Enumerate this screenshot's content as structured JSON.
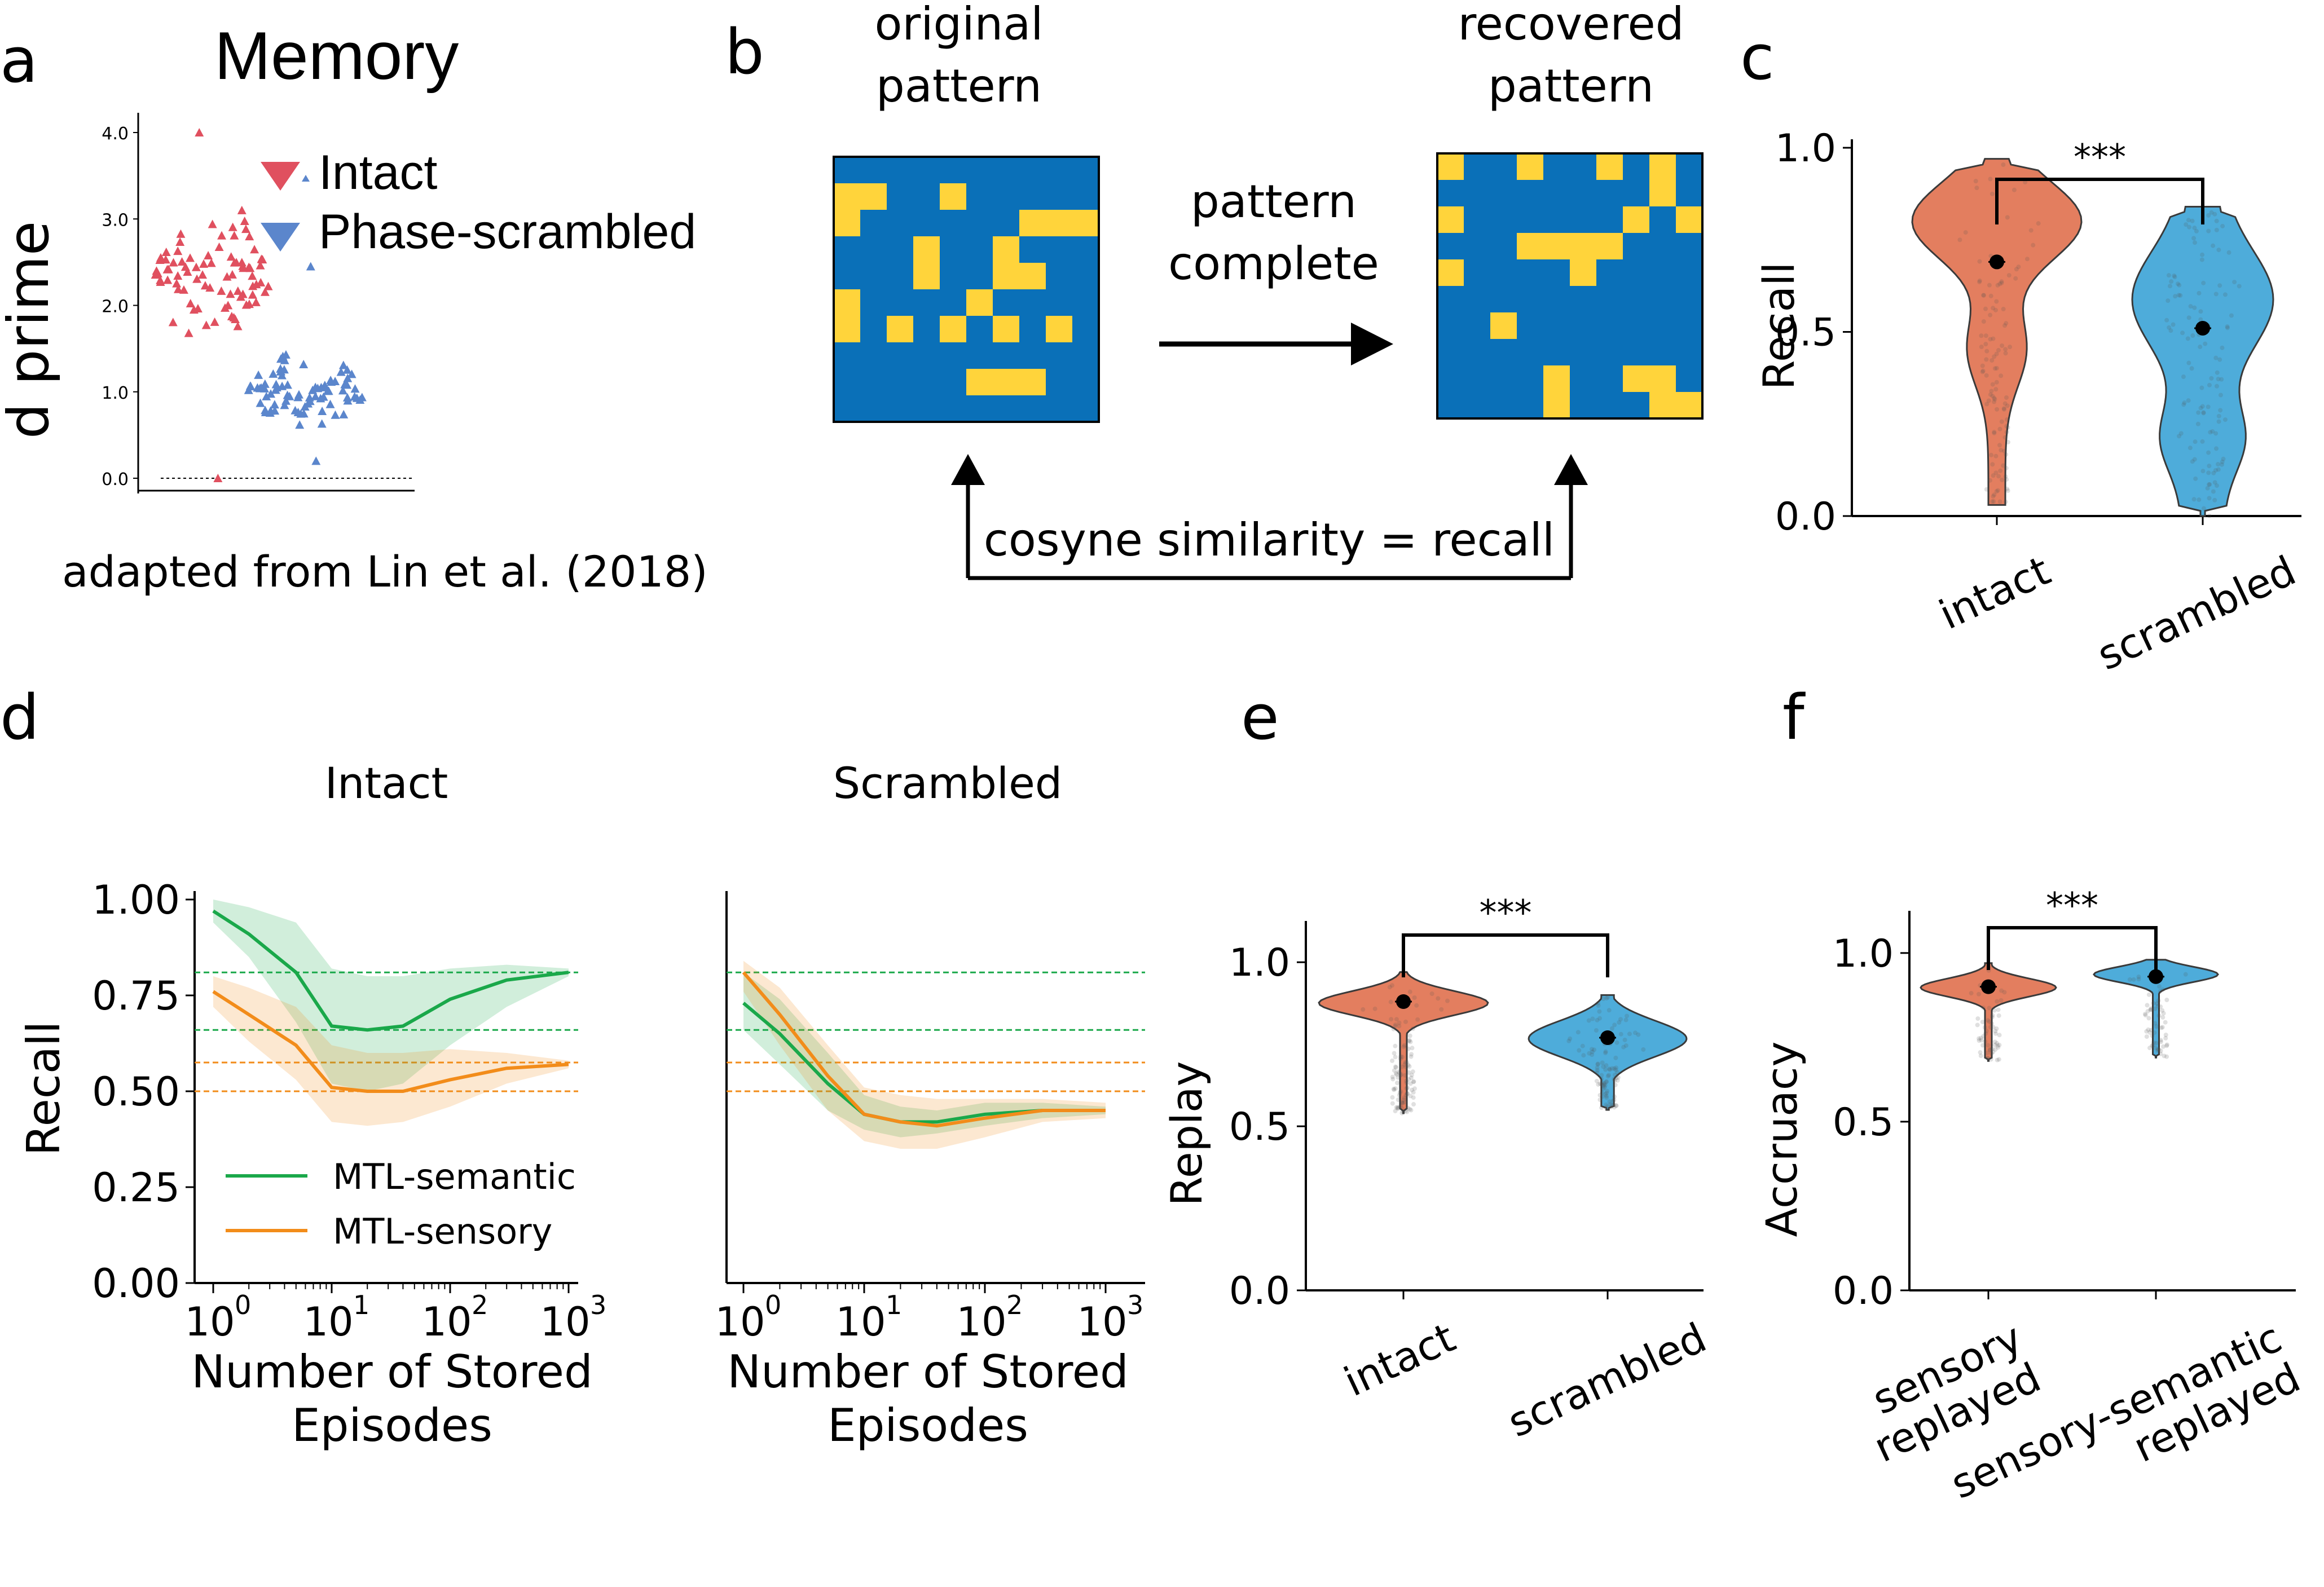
{
  "panel_letters": [
    "a",
    "b",
    "c",
    "d",
    "e",
    "f"
  ],
  "colors": {
    "intact": "#e0704e",
    "scrambled": "#3ba3d6",
    "semantic": "#1aa84a",
    "sensory": "#f28c1a",
    "grid_blue": "#0a70b8",
    "grid_yellow": "#ffd43b",
    "triangle_red": "#e0505f",
    "triangle_blue": "#5b86cc"
  },
  "panel_b": {
    "original_label_1": "original",
    "original_label_2": "pattern",
    "recovered_label_1": "recovered",
    "recovered_label_2": "pattern",
    "arrow_label_1": "pattern",
    "arrow_label_2": "complete",
    "similarity_label": "cosyne similarity = recall",
    "original_cells": [
      [
        0,
        1
      ],
      [
        1,
        1
      ],
      [
        0,
        2
      ],
      [
        4,
        1
      ],
      [
        6,
        3
      ],
      [
        7,
        2
      ],
      [
        8,
        2
      ],
      [
        9,
        2
      ],
      [
        3,
        3
      ],
      [
        3,
        4
      ],
      [
        7,
        4
      ],
      [
        6,
        4
      ],
      [
        5,
        5
      ],
      [
        0,
        5
      ],
      [
        0,
        6
      ],
      [
        2,
        6
      ],
      [
        6,
        6
      ],
      [
        4,
        6
      ],
      [
        8,
        6
      ],
      [
        5,
        8
      ],
      [
        6,
        8
      ],
      [
        7,
        8
      ]
    ],
    "recovered_cells": [
      [
        0,
        0
      ],
      [
        3,
        0
      ],
      [
        6,
        0
      ],
      [
        8,
        0
      ],
      [
        8,
        1
      ],
      [
        0,
        2
      ],
      [
        7,
        2
      ],
      [
        9,
        2
      ],
      [
        3,
        3
      ],
      [
        4,
        3
      ],
      [
        5,
        3
      ],
      [
        6,
        3
      ],
      [
        5,
        4
      ],
      [
        0,
        4
      ],
      [
        2,
        6
      ],
      [
        4,
        8
      ],
      [
        4,
        9
      ],
      [
        7,
        8
      ],
      [
        8,
        8
      ],
      [
        8,
        9
      ],
      [
        9,
        9
      ]
    ]
  },
  "chart_data": [
    {
      "panel": "a",
      "type": "scatter",
      "title": "Memory",
      "ylabel": "d prime",
      "ylim": [
        0,
        4.2
      ],
      "yticks": [
        "0.0",
        "1.0",
        "2.0",
        "3.0",
        "4.0"
      ],
      "legend": [
        "Intact",
        "Phase-scrambled"
      ],
      "caption": "adapted from Lin et al. (2018)",
      "series": [
        {
          "name": "Intact",
          "center": 2.4,
          "min": 0.0,
          "max": 4.0,
          "spread": 0.7
        },
        {
          "name": "Phase-scrambled",
          "center": 1.0,
          "min": 0.2,
          "max": 2.45,
          "spread": 0.35
        }
      ]
    },
    {
      "panel": "c",
      "type": "violin",
      "ylabel": "Recall",
      "ylim": [
        0,
        1.0
      ],
      "yticks": [
        "0.0",
        "0.5",
        "1.0"
      ],
      "categories": [
        "intact",
        "scrambled"
      ],
      "means": [
        0.69,
        0.51
      ],
      "ranges": [
        [
          0.03,
          0.97
        ],
        [
          0.0,
          0.84
        ]
      ],
      "significance": "***"
    },
    {
      "panel": "d-left",
      "type": "line",
      "title": "Intact",
      "xlabel": "Number of Stored Episodes",
      "ylabel": "Recall",
      "xscale": "log",
      "xlim": [
        1,
        1000
      ],
      "ylim": [
        0,
        1.05
      ],
      "xticks": [
        "10",
        "10",
        "10",
        "10"
      ],
      "xtick_exponents": [
        "0",
        "1",
        "2",
        "3"
      ],
      "yticks": [
        "0.00",
        "0.25",
        "0.50",
        "0.75",
        "1.00"
      ],
      "legend": [
        "MTL-semantic",
        "MTL-sensory"
      ],
      "x": [
        1,
        2,
        5,
        10,
        20,
        40,
        100,
        300,
        1000
      ],
      "series": [
        {
          "name": "MTL-semantic",
          "values": [
            0.97,
            0.91,
            0.81,
            0.67,
            0.66,
            0.67,
            0.74,
            0.79,
            0.81
          ],
          "lower": [
            0.94,
            0.85,
            0.68,
            0.52,
            0.5,
            0.52,
            0.62,
            0.72,
            0.8
          ],
          "upper": [
            1.0,
            0.98,
            0.94,
            0.82,
            0.8,
            0.8,
            0.82,
            0.83,
            0.82
          ]
        },
        {
          "name": "MTL-sensory",
          "values": [
            0.76,
            0.7,
            0.62,
            0.51,
            0.5,
            0.5,
            0.53,
            0.56,
            0.57
          ],
          "lower": [
            0.72,
            0.63,
            0.53,
            0.42,
            0.41,
            0.42,
            0.46,
            0.52,
            0.56
          ],
          "upper": [
            0.8,
            0.77,
            0.72,
            0.62,
            0.6,
            0.6,
            0.61,
            0.6,
            0.58
          ]
        }
      ],
      "reference_lines": [
        0.81,
        0.66,
        0.575,
        0.5
      ]
    },
    {
      "panel": "d-right",
      "type": "line",
      "title": "Scrambled",
      "xlabel": "Number of Stored Episodes",
      "xscale": "log",
      "xlim": [
        1,
        1000
      ],
      "ylim": [
        0,
        1.05
      ],
      "xticks": [
        "10",
        "10",
        "10",
        "10"
      ],
      "xtick_exponents": [
        "0",
        "1",
        "2",
        "3"
      ],
      "x": [
        1,
        2,
        5,
        10,
        20,
        40,
        100,
        300,
        1000
      ],
      "series": [
        {
          "name": "MTL-semantic",
          "values": [
            0.73,
            0.65,
            0.52,
            0.44,
            0.42,
            0.42,
            0.44,
            0.45,
            0.45
          ],
          "lower": [
            0.66,
            0.57,
            0.45,
            0.4,
            0.38,
            0.39,
            0.41,
            0.43,
            0.44
          ],
          "upper": [
            0.81,
            0.74,
            0.6,
            0.49,
            0.46,
            0.45,
            0.47,
            0.47,
            0.46
          ]
        },
        {
          "name": "MTL-sensory",
          "values": [
            0.81,
            0.7,
            0.54,
            0.44,
            0.42,
            0.41,
            0.43,
            0.45,
            0.45
          ],
          "lower": [
            0.76,
            0.62,
            0.45,
            0.37,
            0.35,
            0.35,
            0.38,
            0.42,
            0.43
          ],
          "upper": [
            0.84,
            0.77,
            0.62,
            0.51,
            0.49,
            0.48,
            0.48,
            0.48,
            0.47
          ]
        }
      ],
      "reference_lines": [
        0.81,
        0.66,
        0.575,
        0.5
      ]
    },
    {
      "panel": "e",
      "type": "violin",
      "ylabel": "Replay",
      "ylim": [
        0,
        1.1
      ],
      "yticks": [
        "0.0",
        "0.5",
        "1.0"
      ],
      "categories": [
        "intact",
        "scrambled"
      ],
      "means": [
        0.88,
        0.77
      ],
      "ranges": [
        [
          0.54,
          0.97
        ],
        [
          0.55,
          0.9
        ]
      ],
      "significance": "***"
    },
    {
      "panel": "f",
      "type": "violin",
      "ylabel": "Accruacy",
      "ylim": [
        0,
        1.1
      ],
      "yticks": [
        "0.0",
        "0.5",
        "1.0"
      ],
      "categories": [
        "sensory\nreplayed",
        "sensory-semantic\nreplayed"
      ],
      "category_lines": [
        [
          "sensory",
          "replayed"
        ],
        [
          "sensory-semantic",
          "replayed"
        ]
      ],
      "means": [
        0.9,
        0.93
      ],
      "ranges": [
        [
          0.68,
          0.97
        ],
        [
          0.69,
          0.98
        ]
      ],
      "significance": "***"
    }
  ]
}
